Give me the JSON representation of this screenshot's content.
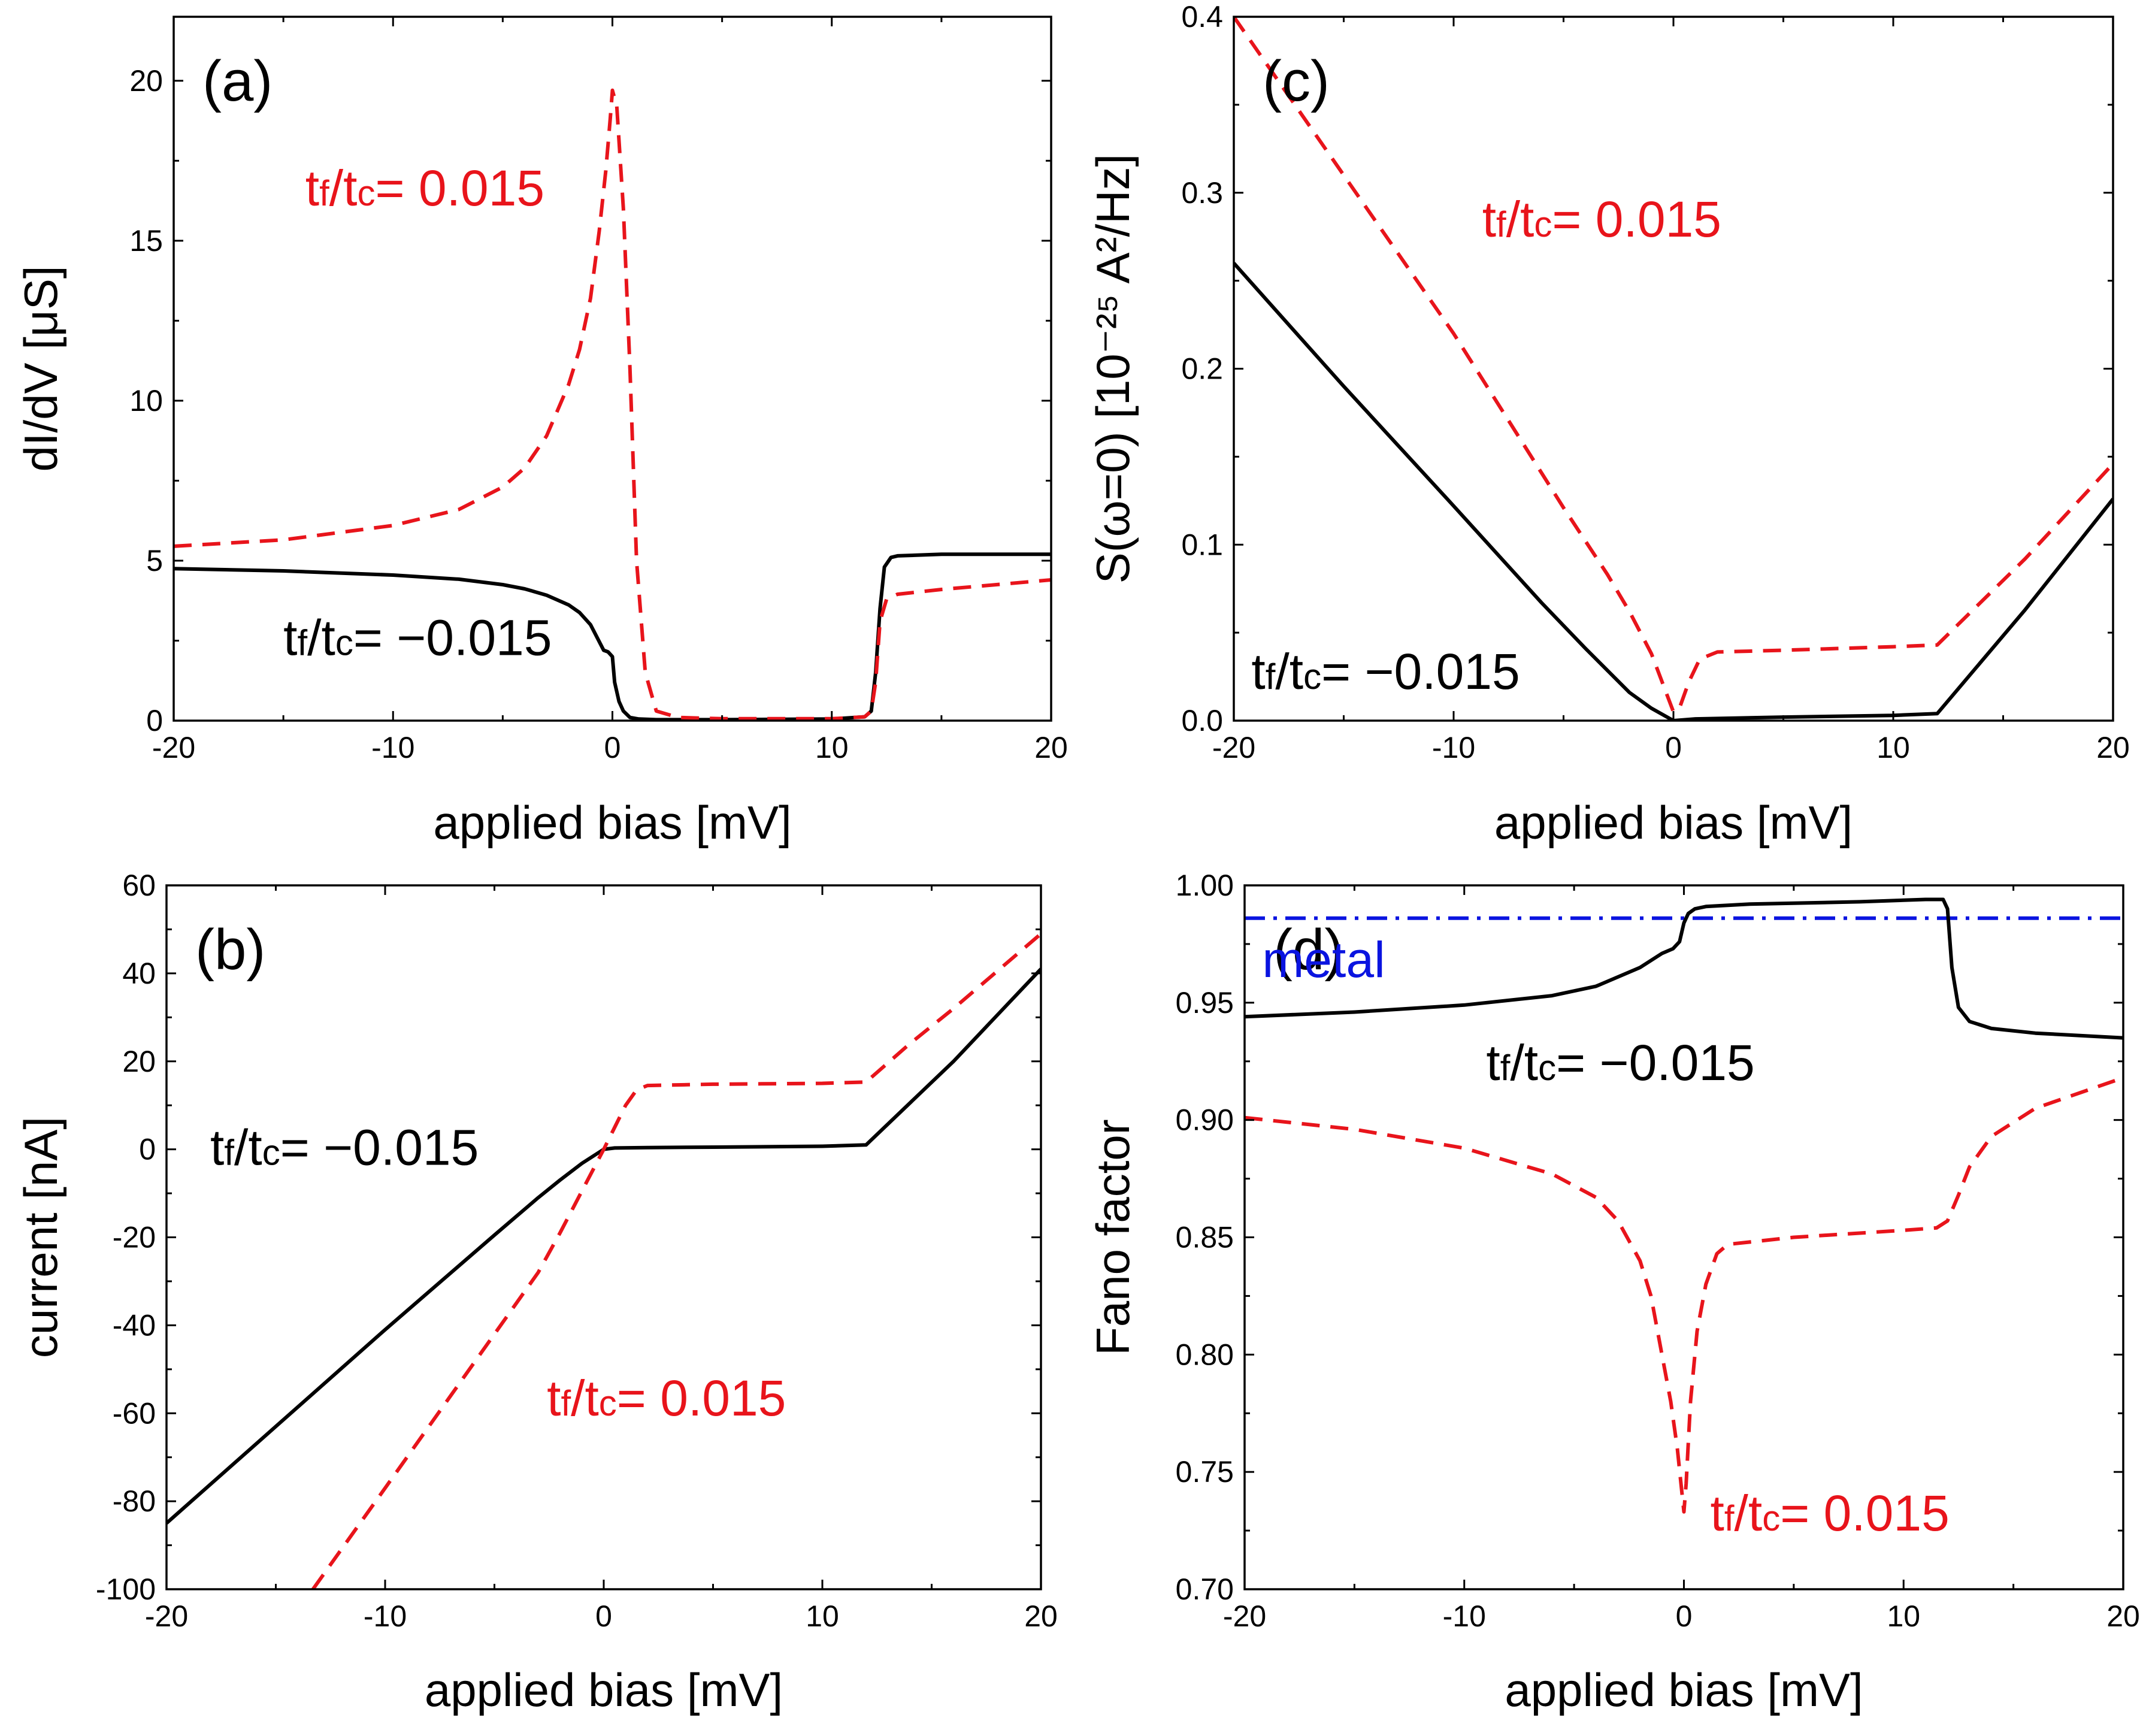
{
  "colors": {
    "solid": "#000000",
    "dashed": "#e8141b",
    "metal": "#0a14e0"
  },
  "chart_data": [
    {
      "id": "a",
      "type": "line",
      "panel_label": "(a)",
      "xlabel": "applied bias [mV]",
      "ylabel": "dI/dV [μS]",
      "xlim": [
        -20,
        20
      ],
      "ylim": [
        0,
        22
      ],
      "xticks": [
        -20,
        -10,
        0,
        10,
        20
      ],
      "yticks": [
        0,
        5,
        10,
        15,
        20
      ],
      "ytick_labels": [
        "0",
        "5",
        "10",
        "15",
        "20"
      ],
      "annotations": [
        {
          "name": "annotation-positive",
          "text": "t",
          "sub1": "f",
          "mid": "/t",
          "sub2": "c",
          "rest": "= 0.015",
          "color": "#e8141b",
          "x": -14,
          "y": 16.1
        },
        {
          "name": "annotation-negative",
          "text": "t",
          "sub1": "f",
          "mid": "/t",
          "sub2": "c",
          "rest": "= −0.015",
          "color": "#000000",
          "x": -15,
          "y": 2.05
        }
      ],
      "series": [
        {
          "name": "t_f/t_c = -0.015",
          "style": "solid",
          "x": [
            -20,
            -15,
            -10,
            -7,
            -5,
            -4,
            -3,
            -2,
            -1.5,
            -1,
            -0.7,
            -0.4,
            -0.2,
            0,
            0.1,
            0.3,
            0.5,
            0.8,
            1.2,
            2,
            5,
            10,
            11.5,
            11.8,
            12.0,
            12.2,
            12.4,
            12.7,
            13,
            15,
            20
          ],
          "y": [
            4.75,
            4.68,
            4.55,
            4.42,
            4.25,
            4.12,
            3.92,
            3.62,
            3.38,
            3.0,
            2.6,
            2.2,
            2.15,
            2.0,
            1.2,
            0.6,
            0.3,
            0.1,
            0.05,
            0.03,
            0.03,
            0.05,
            0.12,
            0.3,
            1.5,
            3.5,
            4.8,
            5.1,
            5.15,
            5.2,
            5.2
          ]
        },
        {
          "name": "t_f/t_c = 0.015",
          "style": "dashed",
          "x": [
            -20,
            -15,
            -10,
            -7,
            -5,
            -4,
            -3,
            -2,
            -1.5,
            -1,
            -0.6,
            -0.3,
            -0.1,
            0,
            0.2,
            0.5,
            0.8,
            1.1,
            1.5,
            2,
            3,
            5,
            10,
            11.5,
            11.8,
            12.0,
            12.2,
            12.5,
            13,
            15,
            20
          ],
          "y": [
            5.45,
            5.65,
            6.1,
            6.6,
            7.3,
            7.9,
            8.9,
            10.5,
            11.6,
            13.2,
            15.3,
            17.2,
            18.8,
            19.7,
            19.2,
            16,
            11,
            5,
            1.5,
            0.3,
            0.1,
            0.06,
            0.06,
            0.12,
            0.3,
            1.2,
            3.1,
            3.8,
            3.95,
            4.1,
            4.4
          ]
        }
      ]
    },
    {
      "id": "b",
      "type": "line",
      "panel_label": "(b)",
      "xlabel": "applied bias [mV]",
      "ylabel": "current [nA]",
      "xlim": [
        -20,
        20
      ],
      "ylim": [
        -100,
        60
      ],
      "xticks": [
        -20,
        -10,
        0,
        10,
        20
      ],
      "yticks": [
        -100,
        -80,
        -60,
        -40,
        -20,
        0,
        20,
        40,
        60
      ],
      "ytick_labels": [
        "-100",
        "-80",
        "-60",
        "-40",
        "-20",
        "0",
        "20",
        "40",
        "60"
      ],
      "annotations": [
        {
          "name": "annotation-negative",
          "text": "t",
          "sub1": "f",
          "mid": "/t",
          "sub2": "c",
          "rest": "= −0.015",
          "color": "#000000",
          "x": -18,
          "y": -3.5
        },
        {
          "name": "annotation-positive",
          "text": "t",
          "sub1": "f",
          "mid": "/t",
          "sub2": "c",
          "rest": "= 0.015",
          "color": "#e8141b",
          "x": -2.6,
          "y": -60.5
        }
      ],
      "series": [
        {
          "name": "t_f/t_c = -0.015",
          "style": "solid",
          "x": [
            -20,
            -15,
            -10,
            -5,
            -3,
            -2,
            -1,
            0,
            0.5,
            2,
            5,
            10,
            12,
            16,
            20
          ],
          "y": [
            -85,
            -63,
            -41,
            -19.5,
            -11,
            -7,
            -3.2,
            0,
            0.3,
            0.4,
            0.5,
            0.7,
            1,
            20,
            41
          ]
        },
        {
          "name": "t_f/t_c = 0.015",
          "style": "dashed",
          "x": [
            -13.3,
            -10,
            -7,
            -5,
            -3,
            -2,
            -1,
            0,
            0.5,
            1,
            1.5,
            2,
            5,
            10,
            12,
            14,
            16,
            18,
            20
          ],
          "y": [
            -100,
            -77,
            -56,
            -42,
            -28,
            -19,
            -9.5,
            0,
            5,
            10,
            13.5,
            14.5,
            14.8,
            15,
            15.3,
            24,
            32,
            40.5,
            49
          ]
        }
      ]
    },
    {
      "id": "c",
      "type": "line",
      "panel_label": "(c)",
      "xlabel": "applied bias [mV]",
      "ylabel": "S(ω=0) [10⁻²⁵ A²/Hz]",
      "xlim": [
        -20,
        20
      ],
      "ylim": [
        0,
        0.4
      ],
      "xticks": [
        -20,
        -10,
        0,
        10,
        20
      ],
      "yticks": [
        0.0,
        0.1,
        0.2,
        0.3,
        0.4
      ],
      "ytick_labels": [
        "0.0",
        "0.1",
        "0.2",
        "0.3",
        "0.4"
      ],
      "annotations": [
        {
          "name": "annotation-positive",
          "text": "t",
          "sub1": "f",
          "mid": "/t",
          "sub2": "c",
          "rest": "= 0.015",
          "color": "#e8141b",
          "x": -8.7,
          "y": 0.275
        },
        {
          "name": "annotation-negative",
          "text": "t",
          "sub1": "f",
          "mid": "/t",
          "sub2": "c",
          "rest": "= −0.015",
          "color": "#000000",
          "x": -19.2,
          "y": 0.018
        }
      ],
      "series": [
        {
          "name": "t_f/t_c = -0.015",
          "style": "solid",
          "x": [
            -20,
            -15,
            -10,
            -6,
            -4,
            -2,
            -1,
            0,
            1,
            5,
            10,
            12,
            16,
            20
          ],
          "y": [
            0.26,
            0.19,
            0.122,
            0.067,
            0.041,
            0.016,
            0.007,
            0.0,
            0.001,
            0.002,
            0.003,
            0.004,
            0.063,
            0.126
          ]
        },
        {
          "name": "t_f/t_c = 0.015",
          "style": "dashed",
          "x": [
            -20,
            -15,
            -10,
            -5,
            -3,
            -2,
            -1,
            0,
            0.3,
            0.7,
            1.2,
            2,
            5,
            10,
            12,
            16,
            20
          ],
          "y": [
            0.4,
            0.31,
            0.22,
            0.121,
            0.083,
            0.062,
            0.038,
            0.005,
            0.008,
            0.022,
            0.035,
            0.039,
            0.04,
            0.042,
            0.043,
            0.092,
            0.146
          ]
        }
      ]
    },
    {
      "id": "d",
      "type": "line",
      "panel_label": "(d)",
      "xlabel": "applied bias [mV]",
      "ylabel": "Fano factor",
      "xlim": [
        -20,
        20
      ],
      "ylim": [
        0.7,
        1.0
      ],
      "xticks": [
        -20,
        -10,
        0,
        10,
        20
      ],
      "yticks": [
        0.7,
        0.75,
        0.8,
        0.85,
        0.9,
        0.95,
        1.0
      ],
      "ytick_labels": [
        "0.70",
        "0.75",
        "0.80",
        "0.85",
        "0.90",
        "0.95",
        "1.00"
      ],
      "annotations": [
        {
          "name": "annotation-metal",
          "plain": "metal",
          "color": "#0a14e0",
          "x": -19.2,
          "y": 0.961
        },
        {
          "name": "annotation-negative",
          "text": "t",
          "sub1": "f",
          "mid": "/t",
          "sub2": "c",
          "rest": "= −0.015",
          "color": "#000000",
          "x": -9.0,
          "y": 0.917
        },
        {
          "name": "annotation-positive",
          "text": "t",
          "sub1": "f",
          "mid": "/t",
          "sub2": "c",
          "rest": "= 0.015",
          "color": "#e8141b",
          "x": 1.2,
          "y": 0.725
        }
      ],
      "series": [
        {
          "name": "metal",
          "style": "dashdot",
          "x": [
            -20,
            20
          ],
          "y": [
            0.986,
            0.986
          ]
        },
        {
          "name": "t_f/t_c = -0.015",
          "style": "solid",
          "x": [
            -20,
            -15,
            -10,
            -6,
            -4,
            -2,
            -1,
            -0.5,
            -0.2,
            0,
            0.2,
            0.5,
            1,
            3,
            8,
            11,
            11.8,
            12.0,
            12.2,
            12.5,
            13,
            14,
            16,
            20
          ],
          "y": [
            0.944,
            0.946,
            0.949,
            0.953,
            0.957,
            0.965,
            0.971,
            0.973,
            0.976,
            0.984,
            0.988,
            0.99,
            0.991,
            0.992,
            0.993,
            0.994,
            0.994,
            0.99,
            0.965,
            0.948,
            0.942,
            0.939,
            0.937,
            0.935
          ]
        },
        {
          "name": "t_f/t_c = 0.015",
          "style": "dashed",
          "x": [
            -20,
            -15,
            -10,
            -6,
            -4,
            -3,
            -2,
            -1.5,
            -1,
            -0.6,
            -0.3,
            -0.1,
            0,
            0.1,
            0.3,
            0.6,
            1,
            1.5,
            2,
            5,
            10,
            11.5,
            12,
            12.5,
            13,
            14,
            16,
            20
          ],
          "y": [
            0.901,
            0.896,
            0.888,
            0.877,
            0.867,
            0.857,
            0.84,
            0.825,
            0.8,
            0.78,
            0.76,
            0.742,
            0.733,
            0.745,
            0.78,
            0.81,
            0.83,
            0.843,
            0.847,
            0.85,
            0.853,
            0.854,
            0.857,
            0.868,
            0.88,
            0.893,
            0.905,
            0.918
          ]
        }
      ]
    }
  ]
}
